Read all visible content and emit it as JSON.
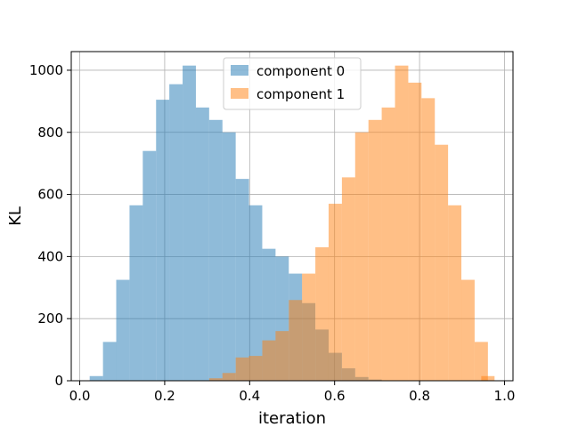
{
  "chart_data": {
    "type": "bar",
    "title": "",
    "xlabel": "iteration",
    "ylabel": "KL",
    "xlim": [
      -0.02,
      1.02
    ],
    "ylim": [
      0,
      1060
    ],
    "xticks": [
      0.0,
      0.2,
      0.4,
      0.6,
      0.8,
      1.0
    ],
    "xtick_labels": [
      "0.0",
      "0.2",
      "0.4",
      "0.6",
      "0.8",
      "1.0"
    ],
    "yticks": [
      0,
      200,
      400,
      600,
      800,
      1000
    ],
    "ytick_labels": [
      "0",
      "200",
      "400",
      "600",
      "800",
      "1000"
    ],
    "grid": true,
    "legend_position": "top-center",
    "series": [
      {
        "name": "component 0",
        "color": "#1f77b4",
        "opacity": 0.5,
        "bin_width": 0.03125,
        "bin_starts": [
          0.0234,
          0.0547,
          0.0859,
          0.1172,
          0.1484,
          0.1797,
          0.2109,
          0.2422,
          0.2734,
          0.3047,
          0.3359,
          0.3672,
          0.3984,
          0.4297,
          0.4609,
          0.4922,
          0.5234,
          0.5547,
          0.5859,
          0.6172,
          0.6484,
          0.6797
        ],
        "counts": [
          15,
          125,
          325,
          565,
          740,
          905,
          955,
          1015,
          880,
          840,
          800,
          650,
          565,
          425,
          400,
          345,
          250,
          165,
          90,
          40,
          12,
          4
        ]
      },
      {
        "name": "component 1",
        "color": "#ff7f0e",
        "opacity": 0.5,
        "bin_width": 0.03125,
        "bin_starts": [
          0.3047,
          0.3359,
          0.3672,
          0.3984,
          0.4297,
          0.4609,
          0.4922,
          0.5234,
          0.5547,
          0.5859,
          0.6172,
          0.6484,
          0.6797,
          0.7109,
          0.7422,
          0.7734,
          0.8047,
          0.8359,
          0.8672,
          0.8984,
          0.9297,
          0.9453
        ],
        "counts": [
          8,
          25,
          75,
          80,
          130,
          160,
          260,
          345,
          430,
          570,
          655,
          800,
          840,
          880,
          1015,
          960,
          910,
          760,
          565,
          325,
          125,
          15
        ]
      }
    ]
  }
}
